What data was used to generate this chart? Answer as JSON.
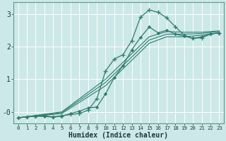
{
  "xlabel": "Humidex (Indice chaleur)",
  "bg_color": "#cde8e8",
  "line_color": "#2e7d6e",
  "grid_color": "#b8d8d8",
  "xlim": [
    -0.5,
    23.5
  ],
  "ylim": [
    -0.35,
    3.35
  ],
  "xticks": [
    0,
    1,
    2,
    3,
    4,
    5,
    6,
    7,
    8,
    9,
    10,
    11,
    12,
    13,
    14,
    15,
    16,
    17,
    18,
    19,
    20,
    21,
    22,
    23
  ],
  "yticks": [
    0,
    1,
    2,
    3
  ],
  "ytick_labels": [
    "-0",
    "1",
    "2",
    "3"
  ],
  "series": [
    {
      "x": [
        0,
        5,
        10,
        15,
        17,
        19,
        21,
        23
      ],
      "y": [
        -0.18,
        -0.05,
        0.8,
        2.1,
        2.3,
        2.3,
        2.35,
        2.42
      ],
      "marker": null,
      "lw": 0.8
    },
    {
      "x": [
        0,
        5,
        10,
        15,
        17,
        19,
        21,
        23
      ],
      "y": [
        -0.18,
        -0.02,
        0.9,
        2.2,
        2.38,
        2.38,
        2.4,
        2.46
      ],
      "marker": null,
      "lw": 0.8
    },
    {
      "x": [
        0,
        5,
        10,
        15,
        17,
        19,
        21,
        23
      ],
      "y": [
        -0.18,
        0.0,
        1.0,
        2.3,
        2.46,
        2.44,
        2.44,
        2.48
      ],
      "marker": null,
      "lw": 0.8
    },
    {
      "x": [
        0,
        1,
        2,
        3,
        4,
        5,
        6,
        7,
        8,
        9,
        10,
        11,
        12,
        13,
        14,
        15,
        16,
        17,
        18,
        19,
        20,
        21,
        22,
        23
      ],
      "y": [
        -0.18,
        -0.15,
        -0.13,
        -0.12,
        -0.15,
        -0.12,
        -0.08,
        -0.05,
        0.05,
        0.4,
        1.25,
        1.62,
        1.75,
        2.18,
        2.9,
        3.12,
        3.05,
        2.88,
        2.6,
        2.35,
        2.25,
        2.27,
        2.38,
        2.42
      ],
      "marker": "+",
      "lw": 0.9
    },
    {
      "x": [
        0,
        1,
        2,
        3,
        4,
        5,
        6,
        7,
        8,
        9,
        10,
        11,
        12,
        13,
        14,
        15,
        16,
        17,
        18,
        19,
        20,
        21,
        22,
        23
      ],
      "y": [
        -0.18,
        -0.15,
        -0.13,
        -0.14,
        -0.16,
        -0.13,
        -0.05,
        0.02,
        0.12,
        0.15,
        0.55,
        1.05,
        1.42,
        1.9,
        2.28,
        2.6,
        2.42,
        2.5,
        2.38,
        2.32,
        2.25,
        2.3,
        2.38,
        2.42
      ],
      "marker": "D",
      "lw": 0.9
    }
  ]
}
